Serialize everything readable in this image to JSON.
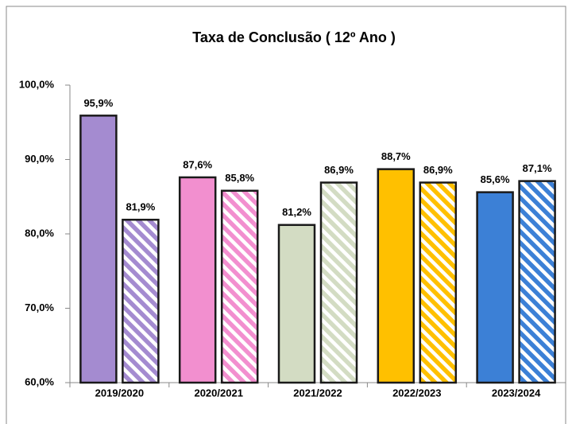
{
  "chart_data": {
    "type": "bar",
    "title": "Taxa de Conclusão ( 12º Ano )",
    "categories": [
      "2019/2020",
      "2020/2021",
      "2021/2022",
      "2022/2023",
      "2023/2024"
    ],
    "series": [
      {
        "colors": [
          "#a48bd0",
          "#f28fcf",
          "#d3dcc3",
          "#ffc000",
          "#3c80d6"
        ],
        "hatched": false,
        "values": [
          95.9,
          87.6,
          81.2,
          88.7,
          85.6
        ],
        "value_labels": [
          "95,9%",
          "87,6%",
          "81,2%",
          "88,7%",
          "85,6%"
        ]
      },
      {
        "colors": [
          "#a48bd0",
          "#f28fcf",
          "#d3dcc3",
          "#ffc000",
          "#3c80d6"
        ],
        "hatched": true,
        "values": [
          81.9,
          85.8,
          86.9,
          86.9,
          87.1
        ],
        "value_labels": [
          "81,9%",
          "85,8%",
          "86,9%",
          "86,9%",
          "87,1%"
        ]
      }
    ],
    "ylim": [
      60,
      100
    ],
    "yticks": [
      {
        "value": 60,
        "label": "60,0%"
      },
      {
        "value": 70,
        "label": "70,0%"
      },
      {
        "value": 80,
        "label": "80,0%"
      },
      {
        "value": 90,
        "label": "90,0%"
      },
      {
        "value": 100,
        "label": "100,0%"
      }
    ],
    "grid": false
  }
}
